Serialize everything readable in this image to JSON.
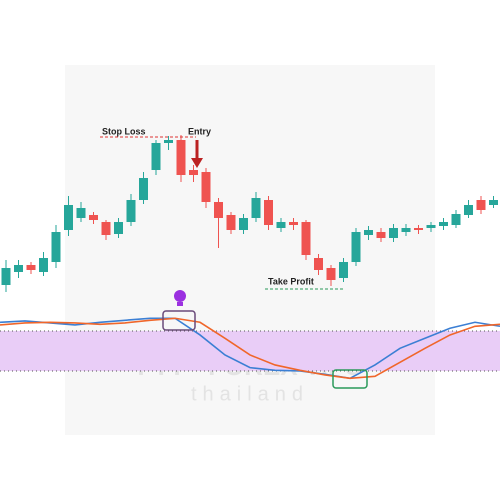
{
  "chart_data": {
    "type": "candlestick",
    "open": [
      15,
      28,
      35,
      28,
      38,
      70,
      82,
      85,
      78,
      66,
      78,
      100,
      130,
      157,
      160,
      130,
      128,
      98,
      85,
      70,
      82,
      100,
      72,
      78,
      78,
      42,
      32,
      22,
      38,
      65,
      68,
      62,
      68,
      72,
      72,
      74,
      75,
      85,
      100,
      95
    ],
    "close": [
      32,
      35,
      30,
      42,
      68,
      95,
      92,
      80,
      65,
      78,
      100,
      122,
      157,
      160,
      125,
      125,
      98,
      82,
      70,
      82,
      102,
      75,
      78,
      75,
      45,
      30,
      20,
      38,
      68,
      70,
      62,
      72,
      72,
      70,
      75,
      78,
      86,
      95,
      90,
      100
    ],
    "high": [
      40,
      40,
      38,
      48,
      75,
      104,
      98,
      88,
      80,
      82,
      106,
      128,
      160,
      164,
      165,
      135,
      132,
      102,
      88,
      86,
      108,
      104,
      82,
      82,
      80,
      46,
      35,
      42,
      72,
      74,
      72,
      76,
      76,
      75,
      78,
      82,
      90,
      100,
      104,
      104
    ],
    "low": [
      8,
      22,
      26,
      24,
      32,
      64,
      78,
      76,
      60,
      62,
      74,
      96,
      125,
      150,
      118,
      118,
      92,
      52,
      66,
      66,
      78,
      70,
      68,
      70,
      40,
      25,
      14,
      18,
      34,
      60,
      58,
      58,
      64,
      66,
      68,
      70,
      72,
      82,
      86,
      92
    ],
    "up_color": "#26a69a",
    "down_color": "#ef5350",
    "ylim": [
      0,
      200
    ],
    "annotations": {
      "stop_loss": "Stop Loss",
      "entry": "Entry",
      "take_profit": "Take Profit"
    },
    "watermark": {
      "title": "FTT - FOREX TIPS",
      "subtitle": "thailand"
    },
    "oscillator": {
      "type": "line",
      "ylim": [
        0,
        100
      ],
      "levels": [
        20,
        80
      ],
      "band_color": "#e9cdf7",
      "series": [
        {
          "color": "#3b7fd4",
          "values": [
            93,
            95,
            92,
            89,
            93,
            96,
            99,
            99,
            74,
            44,
            25,
            21,
            20,
            15,
            9,
            29,
            54,
            69,
            84,
            93,
            87
          ]
        },
        {
          "color": "#f0662a",
          "values": [
            89,
            92,
            93,
            92,
            90,
            92,
            96,
            99,
            93,
            69,
            44,
            29,
            21,
            14,
            9,
            12,
            33,
            54,
            74,
            87,
            90
          ]
        }
      ]
    }
  }
}
